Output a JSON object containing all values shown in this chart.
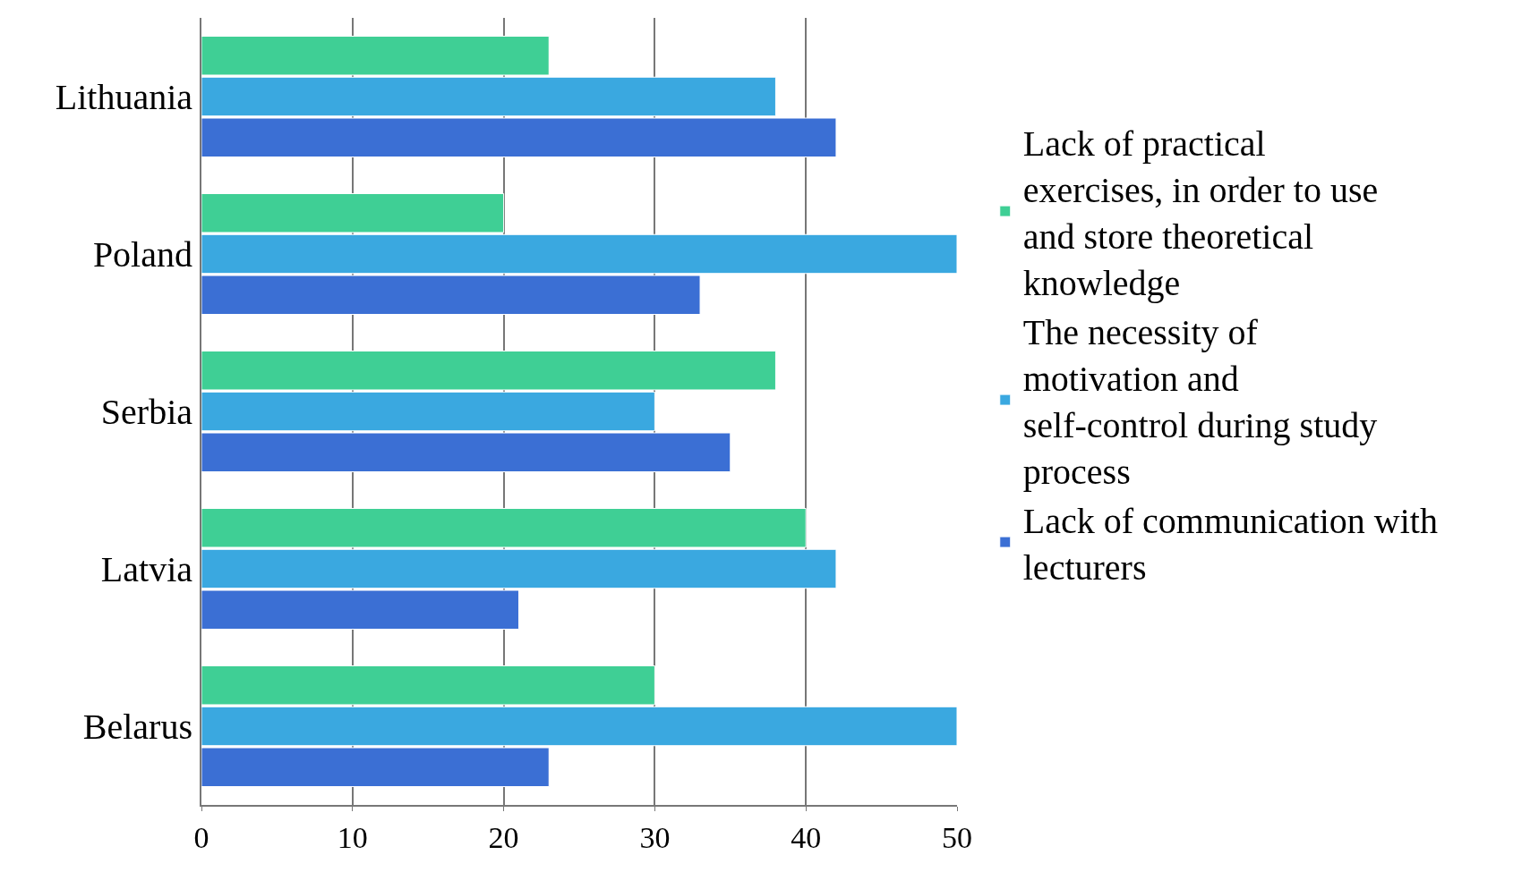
{
  "chart_data": {
    "type": "bar",
    "orientation": "horizontal",
    "categories": [
      "Lithuania",
      "Poland",
      "Serbia",
      "Latvia",
      "Belarus"
    ],
    "series": [
      {
        "name": "Lack of practical exercises, in order to use and store theoretical knowledge",
        "color": "#3fcf95",
        "values": [
          23,
          20,
          38,
          40,
          30
        ]
      },
      {
        "name": "The necessity of motivation and self-control during study process",
        "color": "#3aa8e0",
        "values": [
          38,
          50,
          30,
          42,
          50
        ]
      },
      {
        "name": "Lack of communication with lecturers",
        "color": "#3b6fd4",
        "values": [
          42,
          33,
          35,
          21,
          23
        ]
      }
    ],
    "xlim": [
      0,
      50
    ],
    "xticks": [
      0,
      10,
      20,
      30,
      40,
      50
    ],
    "grid": "x",
    "legend": "right"
  }
}
